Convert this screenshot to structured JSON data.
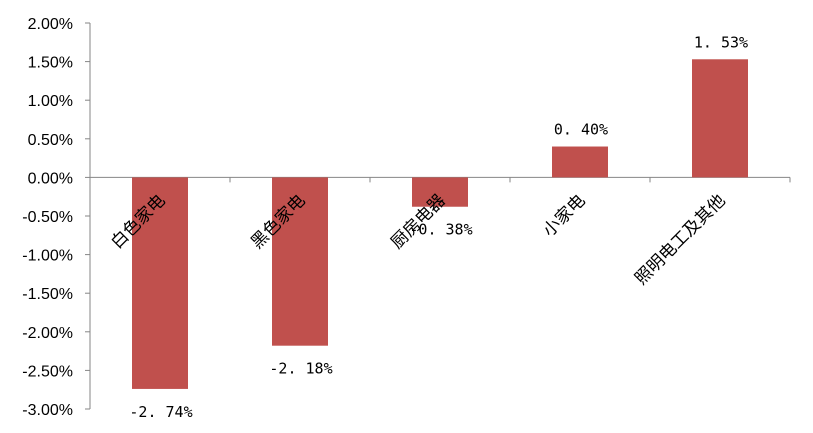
{
  "chart_data": {
    "type": "bar",
    "categories": [
      "白色家电",
      "黑色家电",
      "厨房电器",
      "小家电",
      "照明电工及其他"
    ],
    "series": [
      {
        "values": [
          -2.74,
          -2.18,
          -0.38,
          0.4,
          1.53
        ]
      }
    ],
    "data_labels": [
      "-2. 74%",
      "-2. 18%",
      "-0. 38%",
      "0. 40%",
      "1. 53%"
    ],
    "y_ticks": [
      2.0,
      1.5,
      1.0,
      0.5,
      0.0,
      -0.5,
      -1.0,
      -1.5,
      -2.0,
      -2.5,
      -3.0
    ],
    "y_tick_labels": [
      "2.00%",
      "1.50%",
      "1.00%",
      "0.50%",
      "0.00%",
      "-0.50%",
      "-1.00%",
      "-1.50%",
      "-2.00%",
      "-2.50%",
      "-3.00%"
    ],
    "ylim": [
      -3.0,
      2.0
    ],
    "title": "",
    "xlabel": "",
    "ylabel": "",
    "grid": false,
    "legend": "none",
    "bar_color": "#c0504d",
    "axis_color": "#868686"
  }
}
